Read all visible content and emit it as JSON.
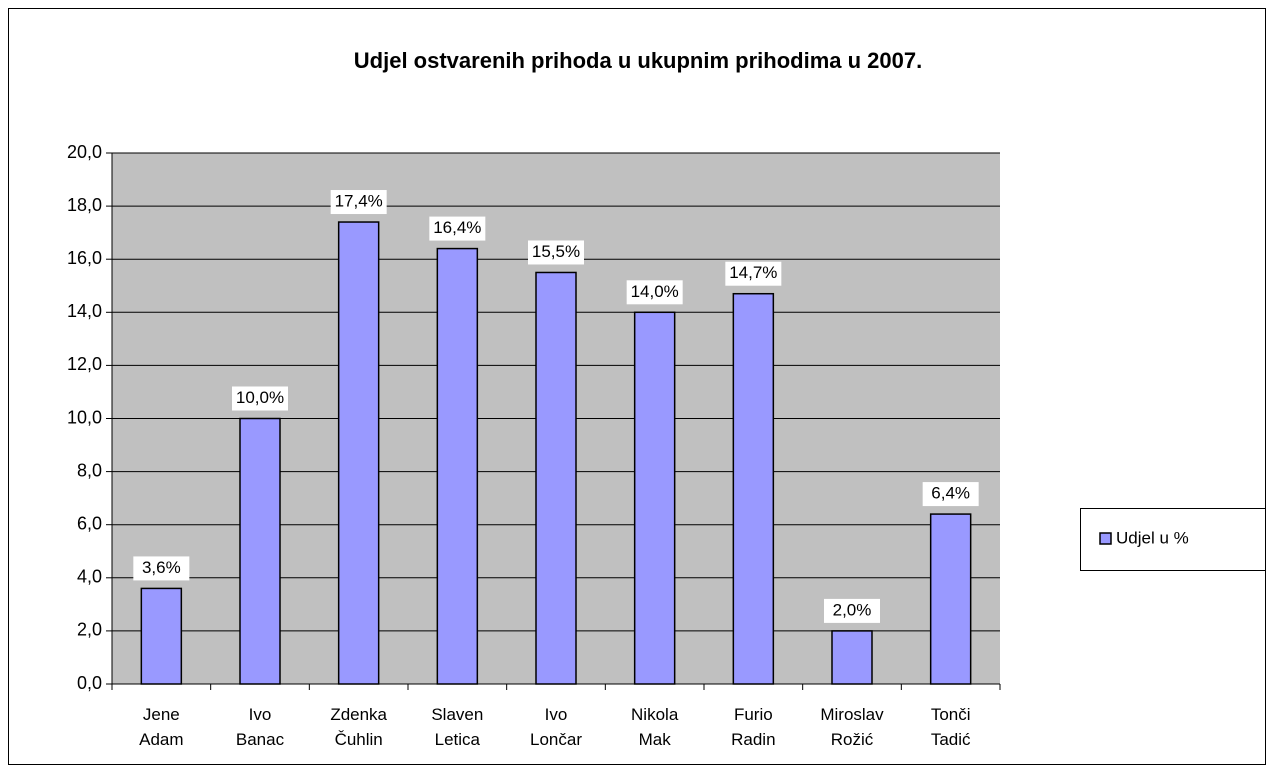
{
  "chart_data": {
    "type": "bar",
    "title": "Udjel ostvarenih prihoda u ukupnim prihodima u 2007.",
    "categories": [
      "Jene Adam",
      "Ivo Banac",
      "Zdenka Čuhlin",
      "Slaven Letica",
      "Ivo Lončar",
      "Nikola Mak",
      "Furio Radin",
      "Miroslav Rožić",
      "Tonči Tadić"
    ],
    "series": [
      {
        "name": "Udjel u %",
        "color": "#9999ff",
        "values": [
          3.6,
          10.0,
          17.4,
          16.4,
          15.5,
          14.0,
          14.7,
          2.0,
          6.4
        ],
        "value_labels": [
          "3,6%",
          "10,0%",
          "17,4%",
          "16,4%",
          "15,5%",
          "14,0%",
          "14,7%",
          "2,0%",
          "6,4%"
        ]
      }
    ],
    "ylim": [
      0,
      20
    ],
    "yticks": [
      {
        "value": 0,
        "label": "0,0"
      },
      {
        "value": 2,
        "label": "2,0"
      },
      {
        "value": 4,
        "label": "4,0"
      },
      {
        "value": 6,
        "label": "6,0"
      },
      {
        "value": 8,
        "label": "8,0"
      },
      {
        "value": 10,
        "label": "10,0"
      },
      {
        "value": 12,
        "label": "12,0"
      },
      {
        "value": 14,
        "label": "14,0"
      },
      {
        "value": 16,
        "label": "16,0"
      },
      {
        "value": 18,
        "label": "18,0"
      },
      {
        "value": 20,
        "label": "20,0"
      }
    ],
    "grid": true,
    "plot_background": "#c0c0c0",
    "legend": "right"
  }
}
